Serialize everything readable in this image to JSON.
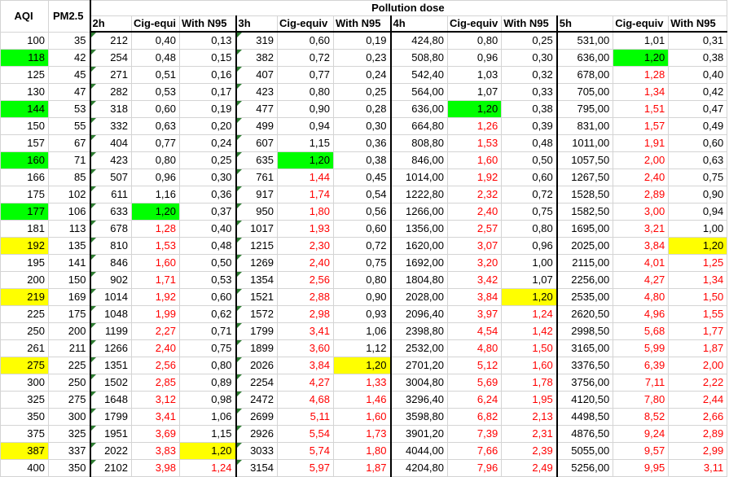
{
  "headers": {
    "aqi": "AQI",
    "pm25": "PM2.5",
    "pollution_dose": "Pollution dose",
    "sub": [
      "2h",
      "Cig-equi",
      "With N95",
      "3h",
      "Cig-equiv",
      "With N95",
      "4h",
      "Cig-equiv",
      "With N95",
      "5h",
      "Cig-equiv",
      "With N95"
    ]
  },
  "colors": {
    "highlight_green": "#00ff00",
    "highlight_yellow": "#ffff00",
    "over_limit_text": "#ff0000"
  },
  "rows": [
    [
      "100",
      "35",
      "212",
      "0,40",
      "0,13",
      "319",
      "0,60",
      "0,19",
      "424,80",
      "0,80",
      "0,25",
      "531,00",
      "1,01",
      "0,31"
    ],
    [
      "118",
      "42",
      "254",
      "0,48",
      "0,15",
      "382",
      "0,72",
      "0,23",
      "508,80",
      "0,96",
      "0,30",
      "636,00",
      "1,20",
      "0,38"
    ],
    [
      "125",
      "45",
      "271",
      "0,51",
      "0,16",
      "407",
      "0,77",
      "0,24",
      "542,40",
      "1,03",
      "0,32",
      "678,00",
      "1,28",
      "0,40"
    ],
    [
      "130",
      "47",
      "282",
      "0,53",
      "0,17",
      "423",
      "0,80",
      "0,25",
      "564,00",
      "1,07",
      "0,33",
      "705,00",
      "1,34",
      "0,42"
    ],
    [
      "144",
      "53",
      "318",
      "0,60",
      "0,19",
      "477",
      "0,90",
      "0,28",
      "636,00",
      "1,20",
      "0,38",
      "795,00",
      "1,51",
      "0,47"
    ],
    [
      "150",
      "55",
      "332",
      "0,63",
      "0,20",
      "499",
      "0,94",
      "0,30",
      "664,80",
      "1,26",
      "0,39",
      "831,00",
      "1,57",
      "0,49"
    ],
    [
      "157",
      "67",
      "404",
      "0,77",
      "0,24",
      "607",
      "1,15",
      "0,36",
      "808,80",
      "1,53",
      "0,48",
      "1011,00",
      "1,91",
      "0,60"
    ],
    [
      "160",
      "71",
      "423",
      "0,80",
      "0,25",
      "635",
      "1,20",
      "0,38",
      "846,00",
      "1,60",
      "0,50",
      "1057,50",
      "2,00",
      "0,63"
    ],
    [
      "166",
      "85",
      "507",
      "0,96",
      "0,30",
      "761",
      "1,44",
      "0,45",
      "1014,00",
      "1,92",
      "0,60",
      "1267,50",
      "2,40",
      "0,75"
    ],
    [
      "175",
      "102",
      "611",
      "1,16",
      "0,36",
      "917",
      "1,74",
      "0,54",
      "1222,80",
      "2,32",
      "0,72",
      "1528,50",
      "2,89",
      "0,90"
    ],
    [
      "177",
      "106",
      "633",
      "1,20",
      "0,37",
      "950",
      "1,80",
      "0,56",
      "1266,00",
      "2,40",
      "0,75",
      "1582,50",
      "3,00",
      "0,94"
    ],
    [
      "181",
      "113",
      "678",
      "1,28",
      "0,40",
      "1017",
      "1,93",
      "0,60",
      "1356,00",
      "2,57",
      "0,80",
      "1695,00",
      "3,21",
      "1,00"
    ],
    [
      "192",
      "135",
      "810",
      "1,53",
      "0,48",
      "1215",
      "2,30",
      "0,72",
      "1620,00",
      "3,07",
      "0,96",
      "2025,00",
      "3,84",
      "1,20"
    ],
    [
      "195",
      "141",
      "846",
      "1,60",
      "0,50",
      "1269",
      "2,40",
      "0,75",
      "1692,00",
      "3,20",
      "1,00",
      "2115,00",
      "4,01",
      "1,25"
    ],
    [
      "200",
      "150",
      "902",
      "1,71",
      "0,53",
      "1354",
      "2,56",
      "0,80",
      "1804,80",
      "3,42",
      "1,07",
      "2256,00",
      "4,27",
      "1,34"
    ],
    [
      "219",
      "169",
      "1014",
      "1,92",
      "0,60",
      "1521",
      "2,88",
      "0,90",
      "2028,00",
      "3,84",
      "1,20",
      "2535,00",
      "4,80",
      "1,50"
    ],
    [
      "225",
      "175",
      "1048",
      "1,99",
      "0,62",
      "1572",
      "2,98",
      "0,93",
      "2096,40",
      "3,97",
      "1,24",
      "2620,50",
      "4,96",
      "1,55"
    ],
    [
      "250",
      "200",
      "1199",
      "2,27",
      "0,71",
      "1799",
      "3,41",
      "1,06",
      "2398,80",
      "4,54",
      "1,42",
      "2998,50",
      "5,68",
      "1,77"
    ],
    [
      "261",
      "211",
      "1266",
      "2,40",
      "0,75",
      "1899",
      "3,60",
      "1,12",
      "2532,00",
      "4,80",
      "1,50",
      "3165,00",
      "5,99",
      "1,87"
    ],
    [
      "275",
      "225",
      "1351",
      "2,56",
      "0,80",
      "2026",
      "3,84",
      "1,20",
      "2701,20",
      "5,12",
      "1,60",
      "3376,50",
      "6,39",
      "2,00"
    ],
    [
      "300",
      "250",
      "1502",
      "2,85",
      "0,89",
      "2254",
      "4,27",
      "1,33",
      "3004,80",
      "5,69",
      "1,78",
      "3756,00",
      "7,11",
      "2,22"
    ],
    [
      "325",
      "275",
      "1648",
      "3,12",
      "0,98",
      "2472",
      "4,68",
      "1,46",
      "3296,40",
      "6,24",
      "1,95",
      "4120,50",
      "7,80",
      "2,44"
    ],
    [
      "350",
      "300",
      "1799",
      "3,41",
      "1,06",
      "2699",
      "5,11",
      "1,60",
      "3598,80",
      "6,82",
      "2,13",
      "4498,50",
      "8,52",
      "2,66"
    ],
    [
      "375",
      "325",
      "1951",
      "3,69",
      "1,15",
      "2926",
      "5,54",
      "1,73",
      "3901,20",
      "7,39",
      "2,31",
      "4876,50",
      "9,24",
      "2,89"
    ],
    [
      "387",
      "337",
      "2022",
      "3,83",
      "1,20",
      "3033",
      "5,74",
      "1,80",
      "4044,00",
      "7,66",
      "2,39",
      "5055,00",
      "9,57",
      "2,99"
    ],
    [
      "400",
      "350",
      "2102",
      "3,98",
      "1,24",
      "3154",
      "5,97",
      "1,87",
      "4204,80",
      "7,96",
      "2,49",
      "5256,00",
      "9,95",
      "3,11"
    ]
  ]
}
